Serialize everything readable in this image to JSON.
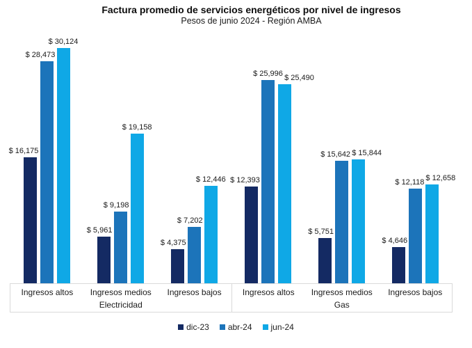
{
  "chart_data": {
    "type": "bar",
    "title": "Factura promedio de servicios energéticos por nivel de ingresos",
    "subtitle": "Pesos de junio 2024 - Región AMBA",
    "value_prefix": "$",
    "y_axis_visible": false,
    "gridlines": false,
    "legend_position": "bottom",
    "series": [
      {
        "name": "dic-23",
        "color": "#142A63"
      },
      {
        "name": "abr-24",
        "color": "#1C74BA"
      },
      {
        "name": "jun-24",
        "color": "#0FA8E6"
      }
    ],
    "groups": [
      {
        "label": "Electricidad",
        "clusters": [
          {
            "category": "Ingresos altos",
            "values": [
              16175,
              28473,
              30124
            ],
            "labels": [
              "$ 16,175",
              "$ 28,473",
              "$ 30,124"
            ]
          },
          {
            "category": "Ingresos medios",
            "values": [
              5961,
              9198,
              19158
            ],
            "labels": [
              "$ 5,961",
              "$ 9,198",
              "$ 19,158"
            ]
          },
          {
            "category": "Ingresos bajos",
            "values": [
              4375,
              7202,
              12446
            ],
            "labels": [
              "$ 4,375",
              "$ 7,202",
              "$ 12,446"
            ]
          }
        ]
      },
      {
        "label": "Gas",
        "clusters": [
          {
            "category": "Ingresos altos",
            "values": [
              12393,
              25996,
              25490
            ],
            "labels": [
              "$ 12,393",
              "$ 25,996",
              "$ 25,490"
            ]
          },
          {
            "category": "Ingresos medios",
            "values": [
              5751,
              15642,
              15844
            ],
            "labels": [
              "$ 5,751",
              "$ 15,642",
              "$ 15,844"
            ]
          },
          {
            "category": "Ingresos bajos",
            "values": [
              4646,
              12118,
              12658
            ],
            "labels": [
              "$ 4,646",
              "$ 12,118",
              "$ 12,658"
            ]
          }
        ]
      }
    ],
    "axis_box_border_color": "#d9d9d9",
    "background_color": "#ffffff"
  }
}
